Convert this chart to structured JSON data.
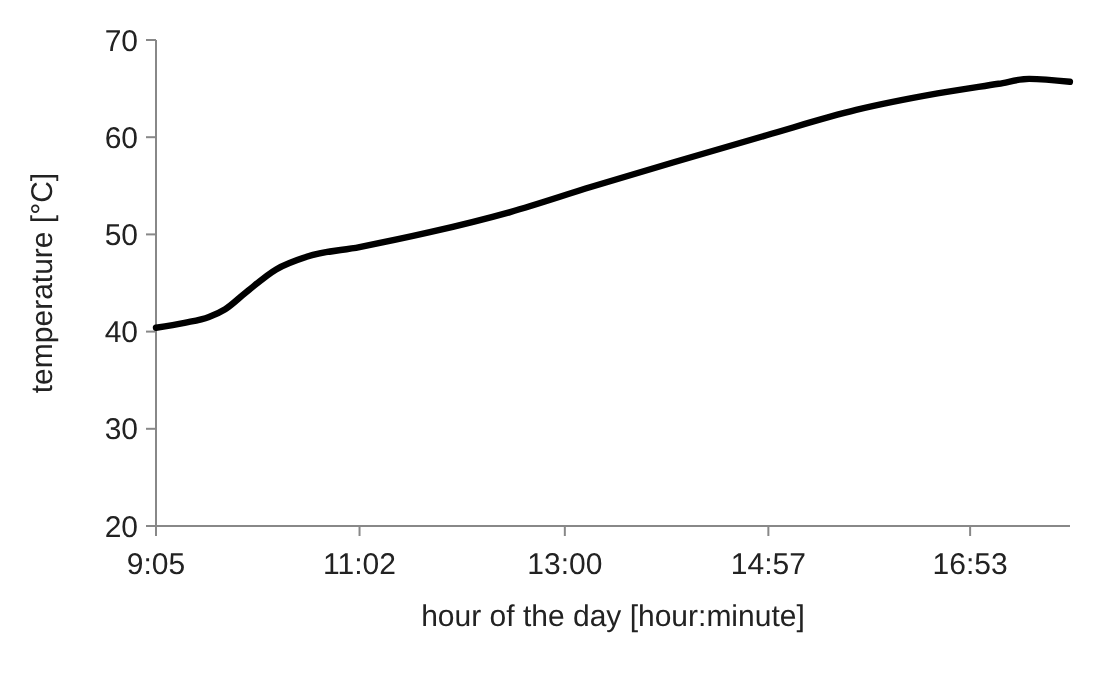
{
  "chart_data": {
    "type": "line",
    "xlabel": "hour of the day [hour:minute]",
    "ylabel": "temperature [°C]",
    "xlim": [
      9.083,
      17.84
    ],
    "ylim": [
      20,
      70
    ],
    "xticks": [
      {
        "value": 9.083,
        "label": "9:05"
      },
      {
        "value": 11.033,
        "label": "11:02"
      },
      {
        "value": 13,
        "label": "13:00"
      },
      {
        "value": 14.95,
        "label": "14:57"
      },
      {
        "value": 16.883,
        "label": "16:53"
      }
    ],
    "yticks": [
      20,
      30,
      40,
      50,
      60,
      70
    ],
    "series": [
      {
        "color": "#000000",
        "x": [
          9.083,
          9.356,
          9.59,
          9.746,
          9.941,
          10.234,
          10.526,
          11.033,
          11.696,
          12.476,
          13.256,
          14.036,
          14.933,
          15.791,
          16.571,
          17.156,
          17.449,
          17.839
        ],
        "values": [
          40.4,
          40.9,
          41.5,
          42.3,
          44,
          46.4,
          47.7,
          48.7,
          50.2,
          52.3,
          54.9,
          57.4,
          60.2,
          62.8,
          64.5,
          65.5,
          66,
          65.7
        ]
      }
    ],
    "grid": false,
    "marker": "none",
    "line_style": "solid"
  }
}
